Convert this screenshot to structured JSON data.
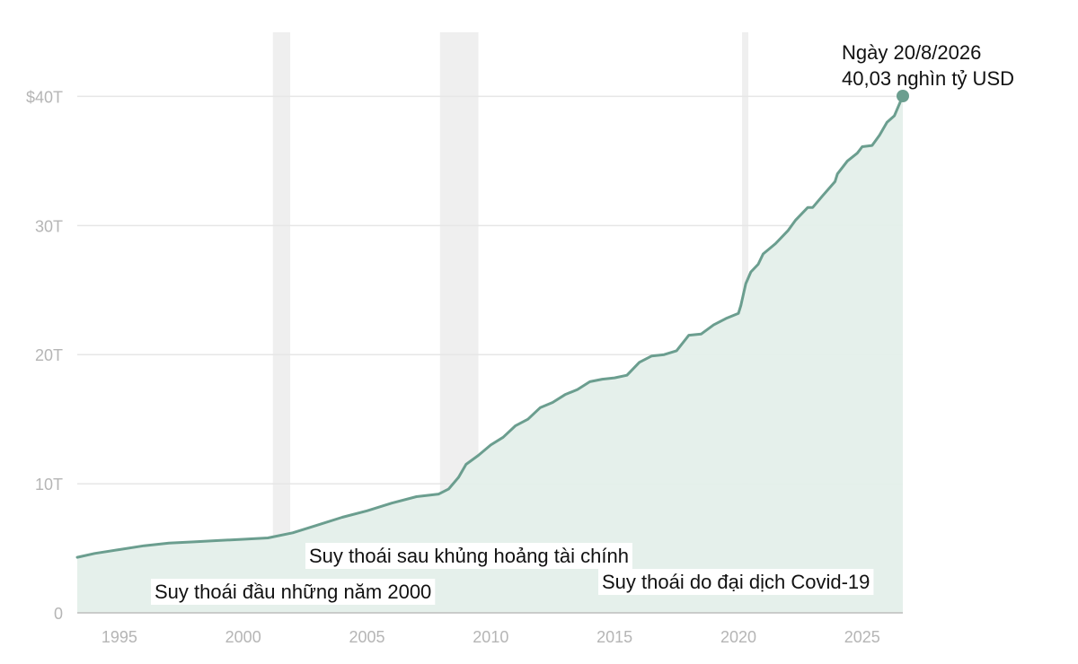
{
  "chart_data": {
    "type": "area",
    "title": "",
    "xlabel": "",
    "ylabel": "",
    "xlim": [
      1993.3,
      2026.64
    ],
    "ylim": [
      0,
      40.03
    ],
    "grid": true,
    "colors": {
      "line": "#6b9e8f",
      "area": "#e4efea",
      "recession": "#efefef",
      "grid": "#e6e6e6",
      "axis": "#bdbdbd",
      "tick_text": "#b5b5b5",
      "point": "#6b9e8f"
    },
    "x_ticks": [
      1995,
      2000,
      2005,
      2010,
      2015,
      2020,
      2025
    ],
    "x_tick_labels": [
      "1995",
      "2000",
      "2005",
      "2010",
      "2015",
      "2020",
      "2025"
    ],
    "y_ticks": [
      0,
      10,
      20,
      30,
      40
    ],
    "y_tick_labels": [
      "0",
      "10T",
      "20T",
      "30T",
      "$40T"
    ],
    "series": [
      {
        "x": [
          1993.3,
          1994,
          1995,
          1996,
          1997,
          1998,
          1999,
          2000,
          2001,
          2002,
          2003,
          2004,
          2005,
          2006,
          2007,
          2007.9,
          2008.3,
          2008.7,
          2009,
          2009.5,
          2010,
          2010.5,
          2011,
          2011.5,
          2012,
          2012.5,
          2013,
          2013.5,
          2014,
          2014.5,
          2015,
          2015.5,
          2016,
          2016.5,
          2017,
          2017.5,
          2018,
          2018.5,
          2019,
          2019.5,
          2020,
          2020.1,
          2020.3,
          2020.5,
          2020.8,
          2021,
          2021.5,
          2022,
          2022.3,
          2022.8,
          2023,
          2023.4,
          2023.9,
          2024,
          2024.4,
          2024.8,
          2025,
          2025.4,
          2025.7,
          2026,
          2026.3,
          2026.64
        ],
        "values": [
          4.3,
          4.6,
          4.9,
          5.2,
          5.4,
          5.5,
          5.6,
          5.7,
          5.8,
          6.2,
          6.8,
          7.4,
          7.9,
          8.5,
          9.0,
          9.2,
          9.6,
          10.5,
          11.5,
          12.2,
          13.0,
          13.6,
          14.5,
          15.0,
          15.9,
          16.3,
          16.9,
          17.3,
          17.9,
          18.1,
          18.2,
          18.4,
          19.4,
          19.9,
          20.0,
          20.3,
          21.5,
          21.6,
          22.3,
          22.8,
          23.2,
          23.8,
          25.5,
          26.4,
          27.0,
          27.8,
          28.6,
          29.6,
          30.4,
          31.4,
          31.4,
          32.3,
          33.4,
          34.0,
          35.0,
          35.6,
          36.1,
          36.2,
          37.0,
          38.0,
          38.5,
          40.03
        ]
      }
    ],
    "recessions": [
      {
        "start": 2001.2,
        "end": 2001.9
      },
      {
        "start": 2007.95,
        "end": 2009.5
      },
      {
        "start": 2020.15,
        "end": 2020.4
      }
    ],
    "annotations": [
      {
        "text": "Suy thoái đầu những năm 2000"
      },
      {
        "text": "Suy thoái sau khủng hoảng tài chính"
      },
      {
        "text": "Suy thoái do đại dịch Covid-19"
      }
    ],
    "callout": {
      "line1": "Ngày 20/8/2026",
      "line2": "40,03 nghìn tỷ USD",
      "x": 2026.64,
      "y": 40.03
    }
  }
}
